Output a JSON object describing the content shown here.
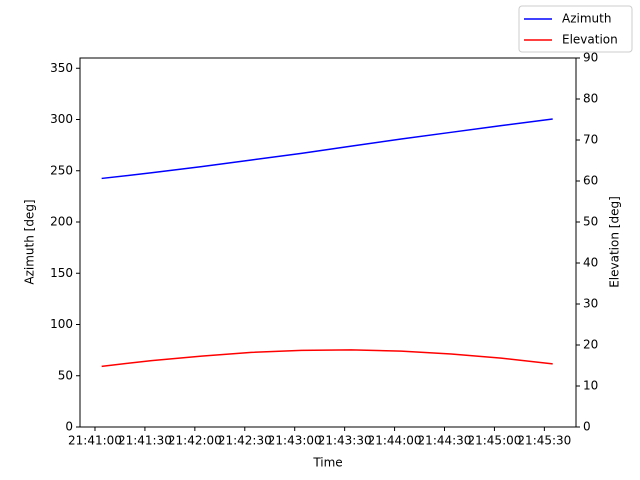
{
  "chart_data": {
    "type": "line",
    "x_label": "Time",
    "y_label": "Azimuth [deg]",
    "y2_label": "Elevation [deg]",
    "x": [
      "21:41:04",
      "21:41:34",
      "21:42:04",
      "21:42:34",
      "21:43:04",
      "21:43:34",
      "21:44:04",
      "21:44:34",
      "21:45:04",
      "21:45:35"
    ],
    "series": [
      {
        "name": "Azimuth",
        "color": "#0000ff",
        "values": [
          242.5,
          248,
          254,
          260.5,
          267,
          274,
          281,
          287.5,
          294,
          300.5
        ]
      },
      {
        "name": "Elevation",
        "color": "#ff0000",
        "axis": "y2",
        "values": [
          14.8,
          16.2,
          17.3,
          18.2,
          18.7,
          18.8,
          18.5,
          17.8,
          16.8,
          15.4
        ]
      }
    ],
    "xlim": [
      "21:40:51",
      "21:45:49"
    ],
    "xticks": [
      "21:41:00",
      "21:41:30",
      "21:42:00",
      "21:42:30",
      "21:43:00",
      "21:43:30",
      "21:44:00",
      "21:44:30",
      "21:45:00",
      "21:45:30"
    ],
    "ylim": [
      0,
      360
    ],
    "yticks": [
      0,
      50,
      100,
      150,
      200,
      250,
      300,
      350
    ],
    "y2lim": [
      0,
      90
    ],
    "y2ticks": [
      0,
      10,
      20,
      30,
      40,
      50,
      60,
      70,
      80,
      90
    ],
    "legend": "upper right"
  }
}
